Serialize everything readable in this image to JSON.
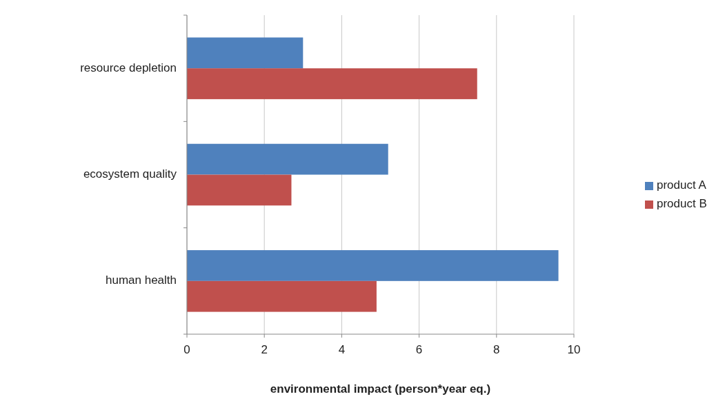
{
  "chart_data": {
    "type": "bar",
    "orientation": "horizontal",
    "xlabel": "environmental impact (person*year eq.)",
    "categories": [
      "resource depletion",
      "ecosystem quality",
      "human health"
    ],
    "series": [
      {
        "name": "product A",
        "color": "#4f81bd",
        "values": [
          3.0,
          5.2,
          9.6
        ]
      },
      {
        "name": "product B",
        "color": "#c0504d",
        "values": [
          7.5,
          2.7,
          4.9
        ]
      }
    ],
    "xlim": [
      0,
      10
    ],
    "xticks": [
      0,
      2,
      4,
      6,
      8,
      10
    ],
    "grid": "x",
    "legend": "right"
  }
}
